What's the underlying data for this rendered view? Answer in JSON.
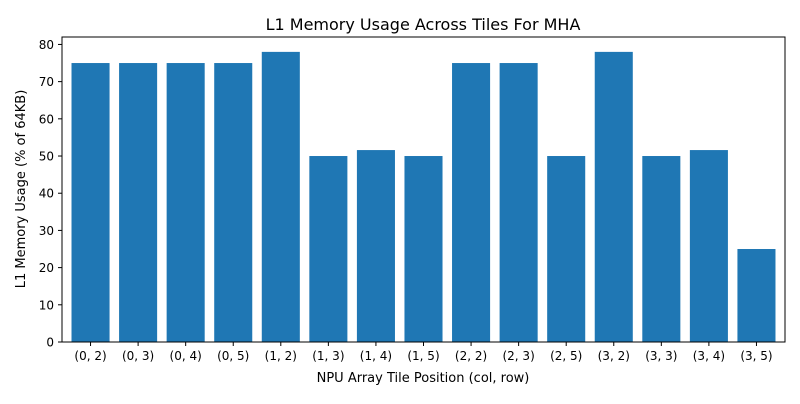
{
  "chart_data": {
    "type": "bar",
    "title": "L1 Memory Usage Across Tiles For MHA",
    "xlabel": "NPU Array Tile Position (col, row)",
    "ylabel": "L1 Memory Usage (% of 64KB)",
    "categories": [
      "(0, 2)",
      "(0, 3)",
      "(0, 4)",
      "(0, 5)",
      "(1, 2)",
      "(1, 3)",
      "(1, 4)",
      "(1, 5)",
      "(2, 2)",
      "(2, 3)",
      "(2, 5)",
      "(3, 2)",
      "(3, 3)",
      "(3, 4)",
      "(3, 5)"
    ],
    "values": [
      75,
      75,
      75,
      75,
      78,
      50,
      51.6,
      50,
      75,
      75,
      50,
      78,
      50,
      51.6,
      25
    ],
    "ylim": [
      0,
      82
    ],
    "yticks": [
      0,
      10,
      20,
      30,
      40,
      50,
      60,
      70,
      80
    ],
    "grid": false,
    "bar_color": "#1f77b4"
  }
}
